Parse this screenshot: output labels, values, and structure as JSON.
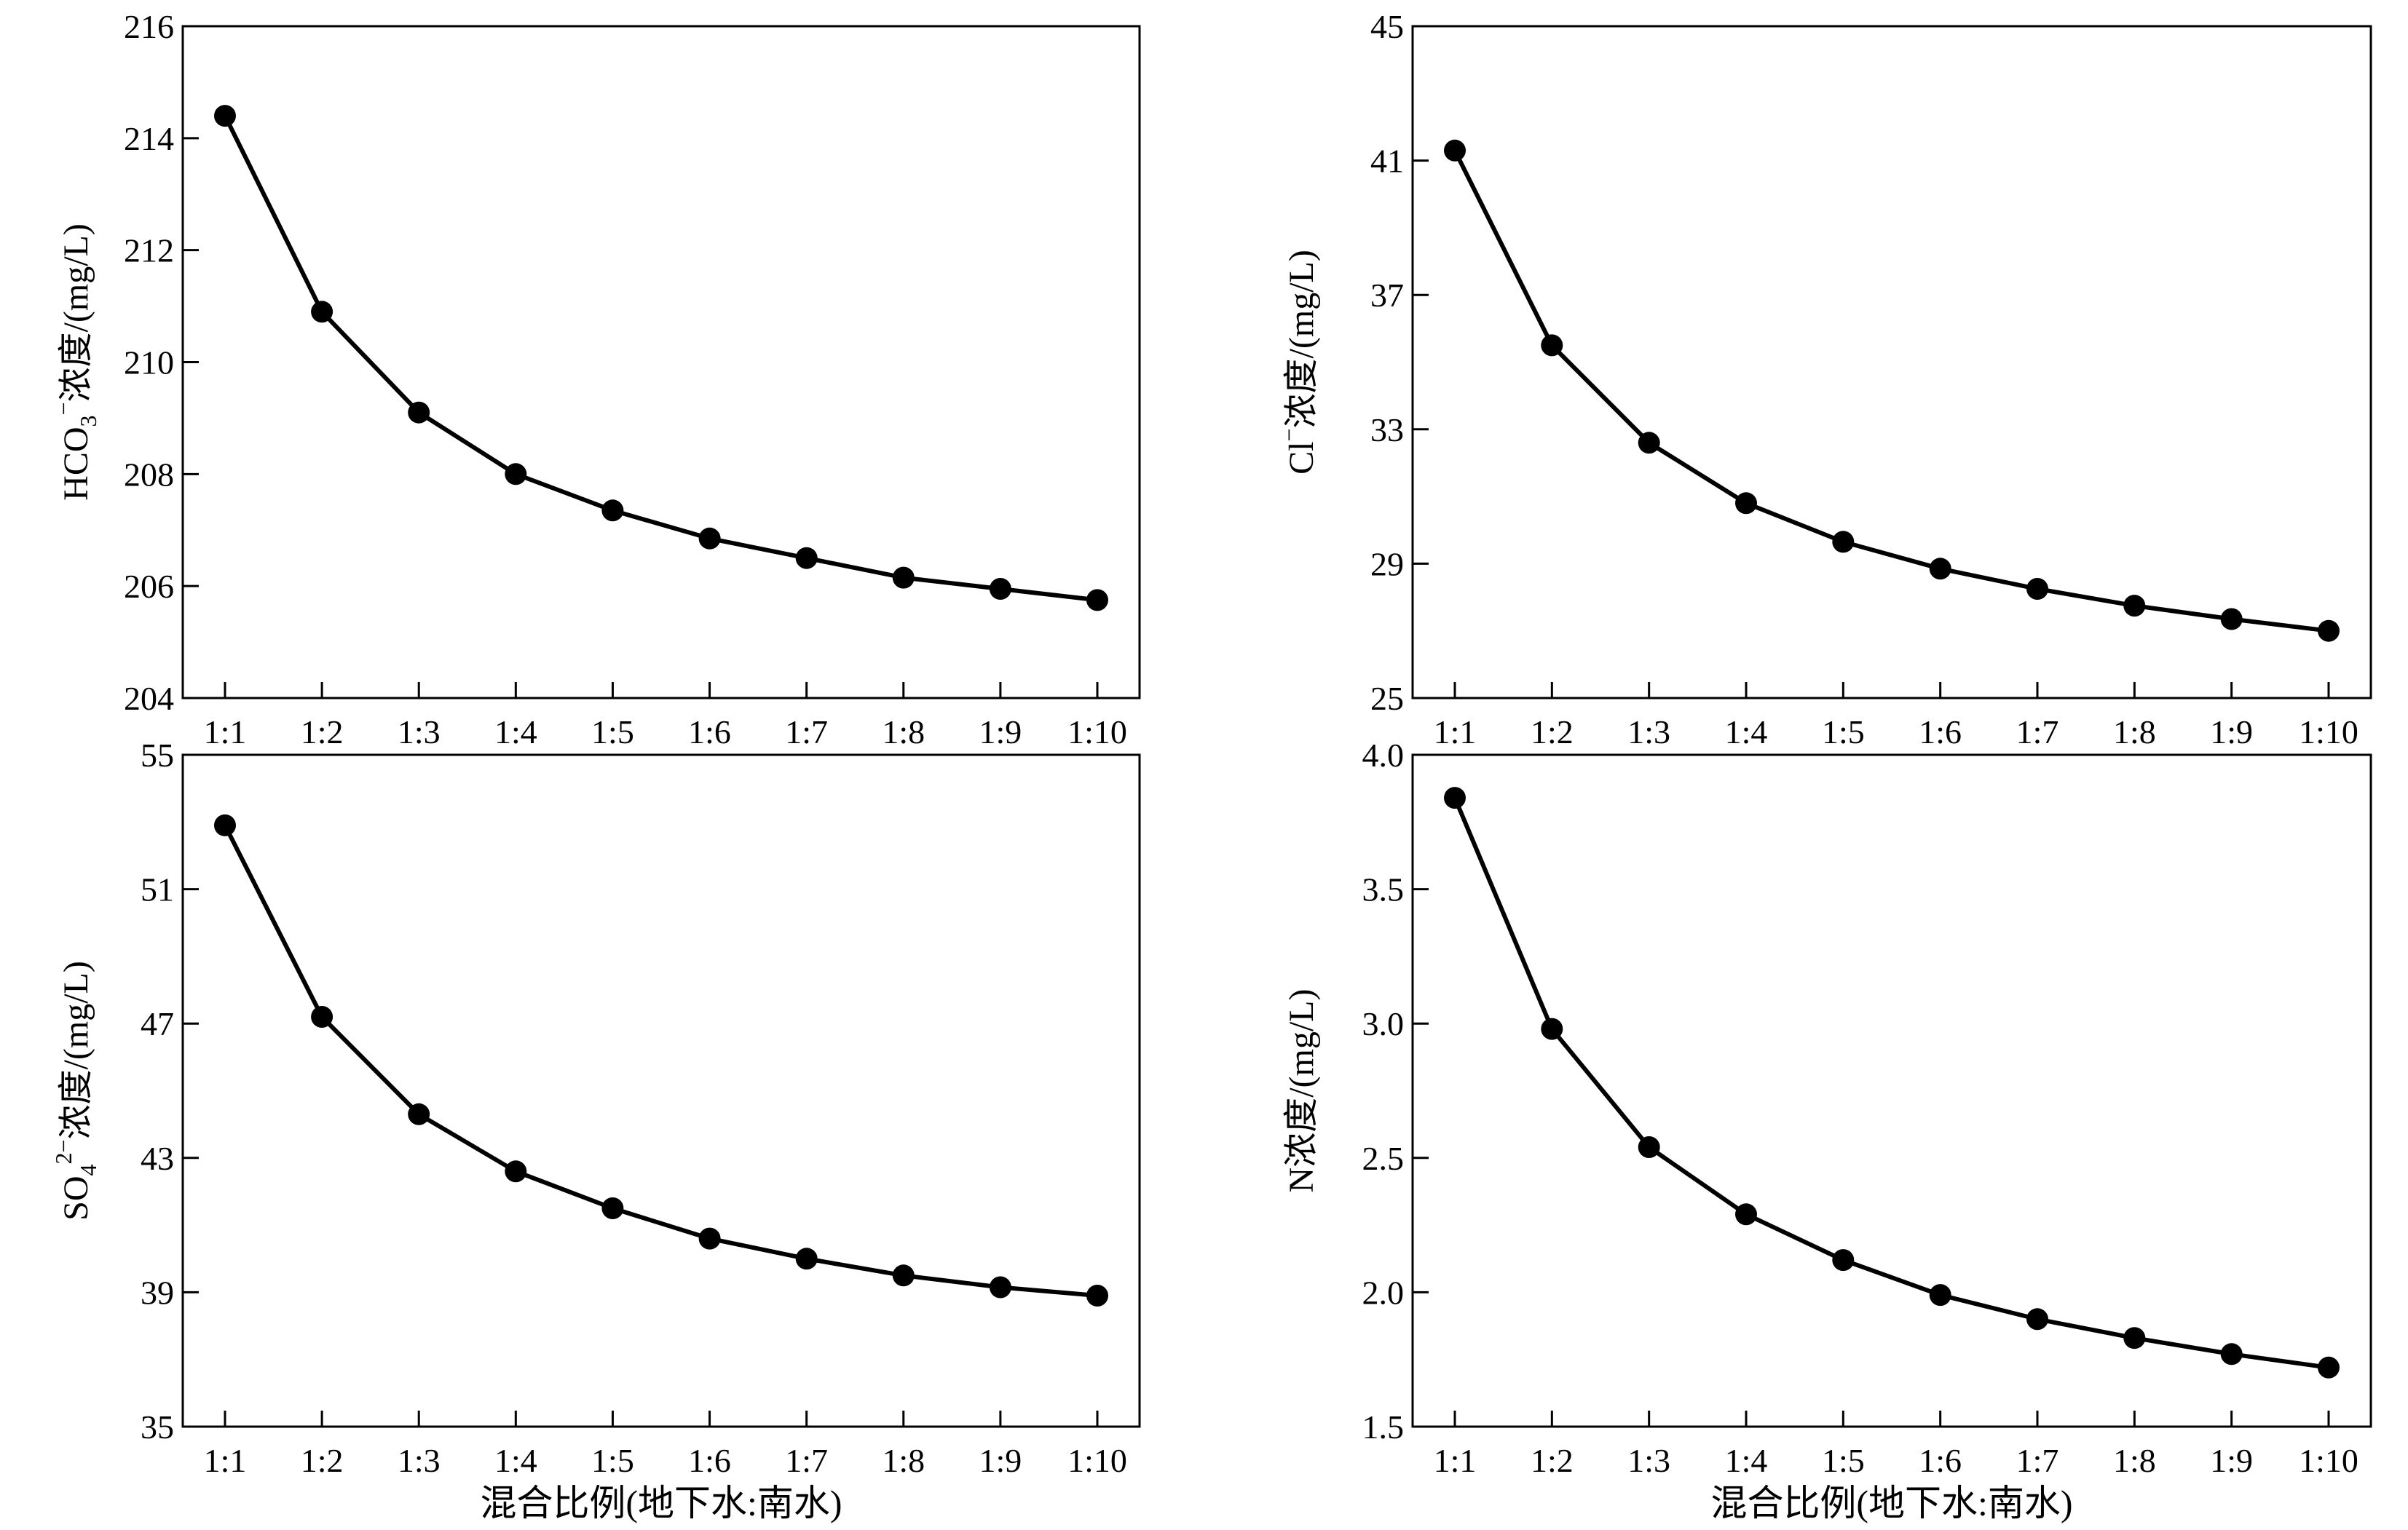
{
  "chart_data": [
    {
      "type": "line",
      "categories": [
        "1:1",
        "1:2",
        "1:3",
        "1:4",
        "1:5",
        "1:6",
        "1:7",
        "1:8",
        "1:9",
        "1:10"
      ],
      "values": [
        214.4,
        210.9,
        209.1,
        208.0,
        207.35,
        206.85,
        206.5,
        206.15,
        205.95,
        205.75
      ],
      "ylabel": "HCO3−浓度/(mg/L)",
      "ylabel_parts": {
        "base": "HCO",
        "sub": "3",
        "sup": "−",
        "rest": "浓度/(mg/L)"
      },
      "xlabel": "",
      "ylim": [
        204,
        216
      ],
      "yticks": [
        "204",
        "206",
        "208",
        "210",
        "212",
        "214",
        "216"
      ],
      "grid": false,
      "marker": "filled-circle",
      "color": "#000000"
    },
    {
      "type": "line",
      "categories": [
        "1:1",
        "1:2",
        "1:3",
        "1:4",
        "1:5",
        "1:6",
        "1:7",
        "1:8",
        "1:9",
        "1:10"
      ],
      "values": [
        41.3,
        35.5,
        32.6,
        30.8,
        29.65,
        28.85,
        28.25,
        27.75,
        27.35,
        27.0
      ],
      "ylabel": "Cl−浓度/(mg/L)",
      "ylabel_parts": {
        "base": "Cl",
        "sub": "",
        "sup": "−",
        "rest": "浓度/(mg/L)"
      },
      "xlabel": "",
      "ylim": [
        25,
        45
      ],
      "yticks": [
        "25",
        "29",
        "33",
        "37",
        "41",
        "45"
      ],
      "grid": false,
      "marker": "filled-circle",
      "color": "#000000"
    },
    {
      "type": "line",
      "categories": [
        "1:1",
        "1:2",
        "1:3",
        "1:4",
        "1:5",
        "1:6",
        "1:7",
        "1:8",
        "1:9",
        "1:10"
      ],
      "values": [
        52.9,
        47.2,
        44.3,
        42.6,
        41.5,
        40.6,
        40.0,
        39.5,
        39.15,
        38.9
      ],
      "ylabel": "SO42−浓度/(mg/L)",
      "ylabel_parts": {
        "base": "SO",
        "sub": "4",
        "sup": "2−",
        "rest": "浓度/(mg/L)"
      },
      "xlabel": "混合比例(地下水:南水)",
      "ylim": [
        35,
        55
      ],
      "yticks": [
        "35",
        "39",
        "43",
        "47",
        "51",
        "55"
      ],
      "grid": false,
      "marker": "filled-circle",
      "color": "#000000"
    },
    {
      "type": "line",
      "categories": [
        "1:1",
        "1:2",
        "1:3",
        "1:4",
        "1:5",
        "1:6",
        "1:7",
        "1:8",
        "1:9",
        "1:10"
      ],
      "values": [
        3.84,
        2.98,
        2.54,
        2.29,
        2.12,
        1.99,
        1.9,
        1.83,
        1.77,
        1.72
      ],
      "ylabel": "N浓度/(mg/L)",
      "ylabel_parts": {
        "base": "N",
        "sub": "",
        "sup": "",
        "rest": "浓度/(mg/L)"
      },
      "xlabel": "混合比例(地下水:南水)",
      "ylim": [
        1.5,
        4.0
      ],
      "yticks": [
        "1.5",
        "2.0",
        "2.5",
        "3.0",
        "3.5",
        "4.0"
      ],
      "grid": false,
      "marker": "filled-circle",
      "color": "#000000"
    }
  ]
}
